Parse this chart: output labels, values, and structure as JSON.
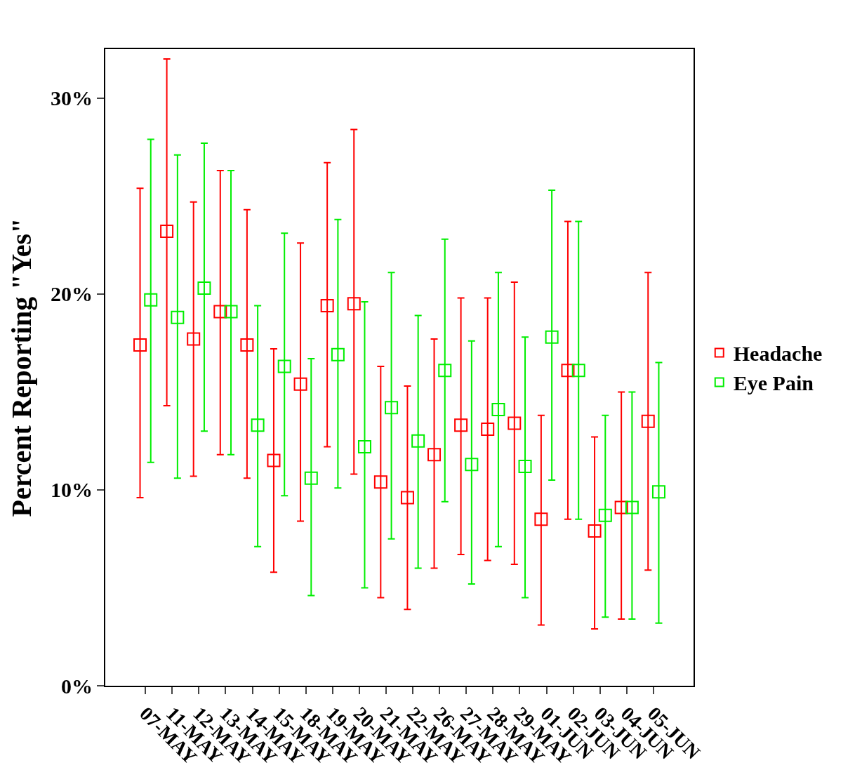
{
  "chart_data": {
    "type": "scatter",
    "ylabel": "Percent Reporting \"Yes\"",
    "categories": [
      "07-MAY",
      "11-MAY",
      "12-MAY",
      "13-MAY",
      "14-MAY",
      "15-MAY",
      "18-MAY",
      "19-MAY",
      "20-MAY",
      "21-MAY",
      "22-MAY",
      "26-MAY",
      "27-MAY",
      "28-MAY",
      "29-MAY",
      "01-JUN",
      "02-JUN",
      "03-JUN",
      "04-JUN",
      "05-JUN"
    ],
    "ylim": [
      0,
      32.5
    ],
    "yticks": [
      {
        "value": 0,
        "label": "0%"
      },
      {
        "value": 10,
        "label": "10%"
      },
      {
        "value": 20,
        "label": "20%"
      },
      {
        "value": 30,
        "label": "30%"
      }
    ],
    "series": [
      {
        "name": "Headache",
        "color": "#ff0000",
        "values": [
          17.4,
          23.2,
          17.7,
          19.1,
          17.4,
          11.5,
          15.4,
          19.4,
          19.5,
          10.4,
          9.6,
          11.8,
          13.3,
          13.1,
          13.4,
          8.5,
          16.1,
          7.9,
          9.1,
          13.5
        ],
        "errors": [
          [
            9.6,
            25.4
          ],
          [
            14.3,
            32.0
          ],
          [
            10.7,
            24.7
          ],
          [
            11.8,
            26.3
          ],
          [
            10.6,
            24.3
          ],
          [
            5.8,
            17.2
          ],
          [
            8.4,
            22.6
          ],
          [
            12.2,
            26.7
          ],
          [
            10.8,
            28.4
          ],
          [
            4.5,
            16.3
          ],
          [
            3.9,
            15.3
          ],
          [
            6.0,
            17.7
          ],
          [
            6.7,
            19.8
          ],
          [
            6.4,
            19.8
          ],
          [
            6.2,
            20.6
          ],
          [
            3.1,
            13.8
          ],
          [
            8.5,
            23.7
          ],
          [
            2.9,
            12.7
          ],
          [
            3.4,
            15.0
          ],
          [
            5.9,
            21.1
          ]
        ]
      },
      {
        "name": "Eye Pain",
        "color": "#00ee00",
        "values": [
          19.7,
          18.8,
          20.3,
          19.1,
          13.3,
          16.3,
          10.6,
          16.9,
          12.2,
          14.2,
          12.5,
          16.1,
          11.3,
          14.1,
          11.2,
          17.8,
          16.1,
          8.7,
          9.1,
          9.9
        ],
        "errors": [
          [
            11.4,
            27.9
          ],
          [
            10.6,
            27.1
          ],
          [
            13.0,
            27.7
          ],
          [
            11.8,
            26.3
          ],
          [
            7.1,
            19.4
          ],
          [
            9.7,
            23.1
          ],
          [
            4.6,
            16.7
          ],
          [
            10.1,
            23.8
          ],
          [
            5.0,
            19.6
          ],
          [
            7.5,
            21.1
          ],
          [
            6.0,
            18.9
          ],
          [
            9.4,
            22.8
          ],
          [
            5.2,
            17.6
          ],
          [
            7.1,
            21.1
          ],
          [
            4.5,
            17.8
          ],
          [
            10.5,
            25.3
          ],
          [
            8.5,
            23.7
          ],
          [
            3.5,
            13.8
          ],
          [
            3.4,
            15.0
          ],
          [
            3.2,
            16.5
          ]
        ]
      }
    ],
    "marker": "square",
    "legend": "right"
  }
}
